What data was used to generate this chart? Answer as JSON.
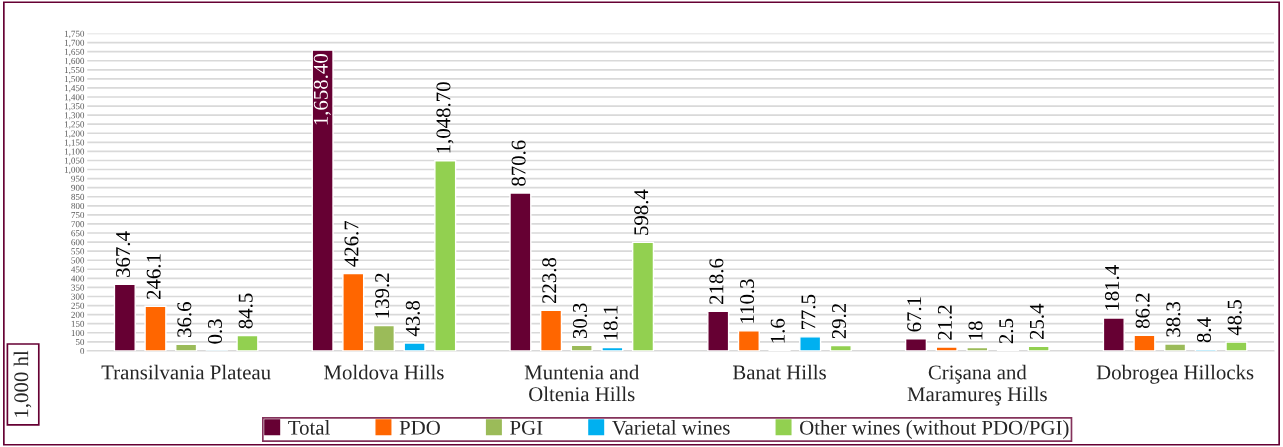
{
  "chart_data": {
    "type": "bar",
    "ylabel": "1,000 hl",
    "categories": [
      "Transilvania Plateau",
      "Moldova Hills",
      "Muntenia and\nOltenia Hills",
      "Banat Hills",
      "Crişana and\nMaramureş Hills",
      "Dobrogea Hillocks"
    ],
    "series": [
      {
        "name": "Total",
        "color": "#660033",
        "values": [
          367.4,
          1658.4,
          870.6,
          218.6,
          67.1,
          181.4
        ],
        "value_labels": [
          "367.4",
          "1,658.40",
          "870.6",
          "218.6",
          "67.1",
          "181.4"
        ]
      },
      {
        "name": "PDO",
        "color": "#ff6600",
        "values": [
          246.1,
          426.7,
          223.8,
          110.3,
          21.2,
          86.2
        ],
        "value_labels": [
          "246.1",
          "426.7",
          "223.8",
          "110.3",
          "21.2",
          "86.2"
        ]
      },
      {
        "name": "PGI",
        "color": "#9bbb59",
        "values": [
          36.6,
          139.2,
          30.3,
          1.6,
          18,
          38.3
        ],
        "value_labels": [
          "36.6",
          "139.2",
          "30.3",
          "1.6",
          "18",
          "38.3"
        ]
      },
      {
        "name": "Varietal wines",
        "color": "#00b0f0",
        "values": [
          0.3,
          43.8,
          18.1,
          77.5,
          2.5,
          8.4
        ],
        "value_labels": [
          "0.3",
          "43.8",
          "18.1",
          "77.5",
          "2.5",
          "8.4"
        ]
      },
      {
        "name": "Other wines (without PDO/PGI)",
        "color": "#92d050",
        "values": [
          84.5,
          1048.7,
          598.4,
          29.2,
          25.4,
          48.5
        ],
        "value_labels": [
          "84.5",
          "1,048.70",
          "598.4",
          "29.2",
          "25.4",
          "48.5"
        ]
      }
    ],
    "ylim": [
      0,
      1750
    ],
    "yticks": [
      0,
      50,
      100,
      150,
      200,
      250,
      300,
      350,
      400,
      450,
      500,
      550,
      600,
      650,
      700,
      750,
      800,
      850,
      900,
      950,
      {
        "value": 1000,
        "label": "1,000"
      },
      {
        "value": 1050,
        "label": "1,050"
      },
      {
        "value": 1100,
        "label": "1,100"
      },
      {
        "value": 1150,
        "label": "1,150"
      },
      {
        "value": 1200,
        "label": "1,200"
      },
      {
        "value": 1250,
        "label": "1,250"
      },
      {
        "value": 1300,
        "label": "1,300"
      },
      {
        "value": 1350,
        "label": "1,350"
      },
      {
        "value": 1400,
        "label": "1,400"
      },
      {
        "value": 1450,
        "label": "1,450"
      },
      {
        "value": 1500,
        "label": "1,500"
      },
      {
        "value": 1550,
        "label": "1,550"
      },
      {
        "value": 1600,
        "label": "1,600"
      },
      {
        "value": 1650,
        "label": "1,650"
      },
      {
        "value": 1700,
        "label": "1,700"
      },
      {
        "value": 1750,
        "label": "1,750"
      }
    ],
    "grid": "y",
    "legend": "bottom"
  }
}
